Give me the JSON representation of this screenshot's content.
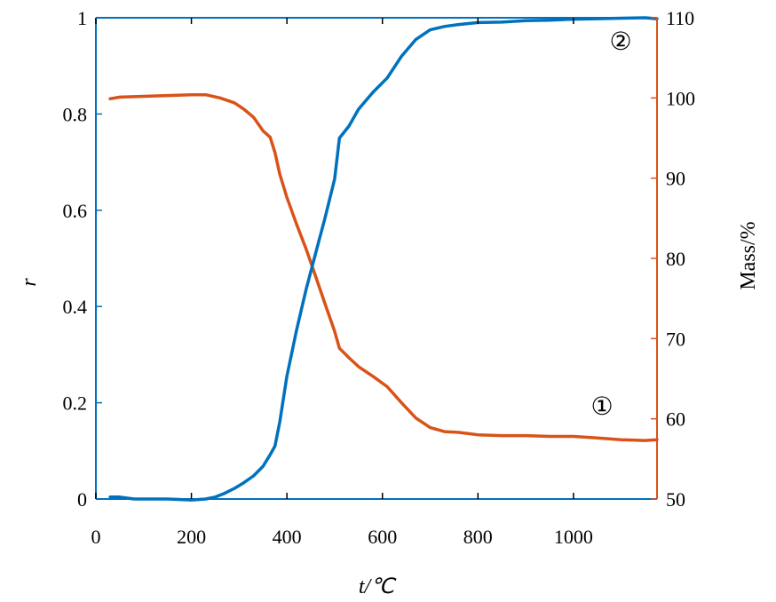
{
  "chart_data": {
    "type": "line",
    "xlabel": "t/℃",
    "ylabel_left": "r",
    "ylabel_right": "Mass/%",
    "xlim": [
      0,
      1175
    ],
    "ylim_left": [
      0,
      1
    ],
    "ylim_right": [
      50,
      110
    ],
    "x_ticks": [
      0,
      200,
      400,
      600,
      800,
      1000
    ],
    "y_left_ticks": [
      0,
      0.2,
      0.4,
      0.6,
      0.8,
      1
    ],
    "y_right_ticks": [
      50,
      60,
      70,
      80,
      90,
      100,
      110
    ],
    "grid": false,
    "colors": {
      "left_axis": "#0072BD",
      "right_axis": "#D95319",
      "text": "#000000"
    },
    "series": [
      {
        "name": "①",
        "axis": "right",
        "color": "#D95319",
        "x": [
          30,
          50,
          100,
          150,
          200,
          230,
          260,
          290,
          310,
          330,
          350,
          365,
          375,
          385,
          400,
          420,
          440,
          460,
          480,
          500,
          510,
          530,
          550,
          580,
          610,
          640,
          670,
          700,
          730,
          760,
          800,
          850,
          900,
          950,
          1000,
          1050,
          1100,
          1150,
          1175
        ],
        "values": [
          99.9,
          100.1,
          100.2,
          100.3,
          100.4,
          100.4,
          100.0,
          99.4,
          98.6,
          97.6,
          95.9,
          95.1,
          93.2,
          90.5,
          87.6,
          84.3,
          81.2,
          77.8,
          74.3,
          70.9,
          68.8,
          67.6,
          66.5,
          65.3,
          64.0,
          62.0,
          60.1,
          58.9,
          58.4,
          58.3,
          58.0,
          57.9,
          57.9,
          57.8,
          57.8,
          57.6,
          57.4,
          57.3,
          57.4
        ]
      },
      {
        "name": "②",
        "axis": "left",
        "color": "#0072BD",
        "x": [
          30,
          50,
          80,
          100,
          150,
          200,
          230,
          250,
          270,
          290,
          310,
          330,
          350,
          365,
          375,
          385,
          400,
          420,
          440,
          460,
          480,
          500,
          510,
          530,
          550,
          580,
          610,
          640,
          670,
          700,
          730,
          760,
          800,
          850,
          900,
          950,
          1000,
          1050,
          1100,
          1150,
          1175
        ],
        "values": [
          0.004,
          0.004,
          0.0,
          0.0,
          0.0,
          -0.002,
          0.0,
          0.004,
          0.012,
          0.022,
          0.034,
          0.048,
          0.068,
          0.092,
          0.11,
          0.16,
          0.255,
          0.35,
          0.435,
          0.51,
          0.585,
          0.665,
          0.75,
          0.775,
          0.81,
          0.845,
          0.875,
          0.92,
          0.955,
          0.975,
          0.982,
          0.986,
          0.99,
          0.991,
          0.994,
          0.995,
          0.997,
          0.998,
          0.999,
          1.0,
          0.998
        ]
      }
    ]
  }
}
